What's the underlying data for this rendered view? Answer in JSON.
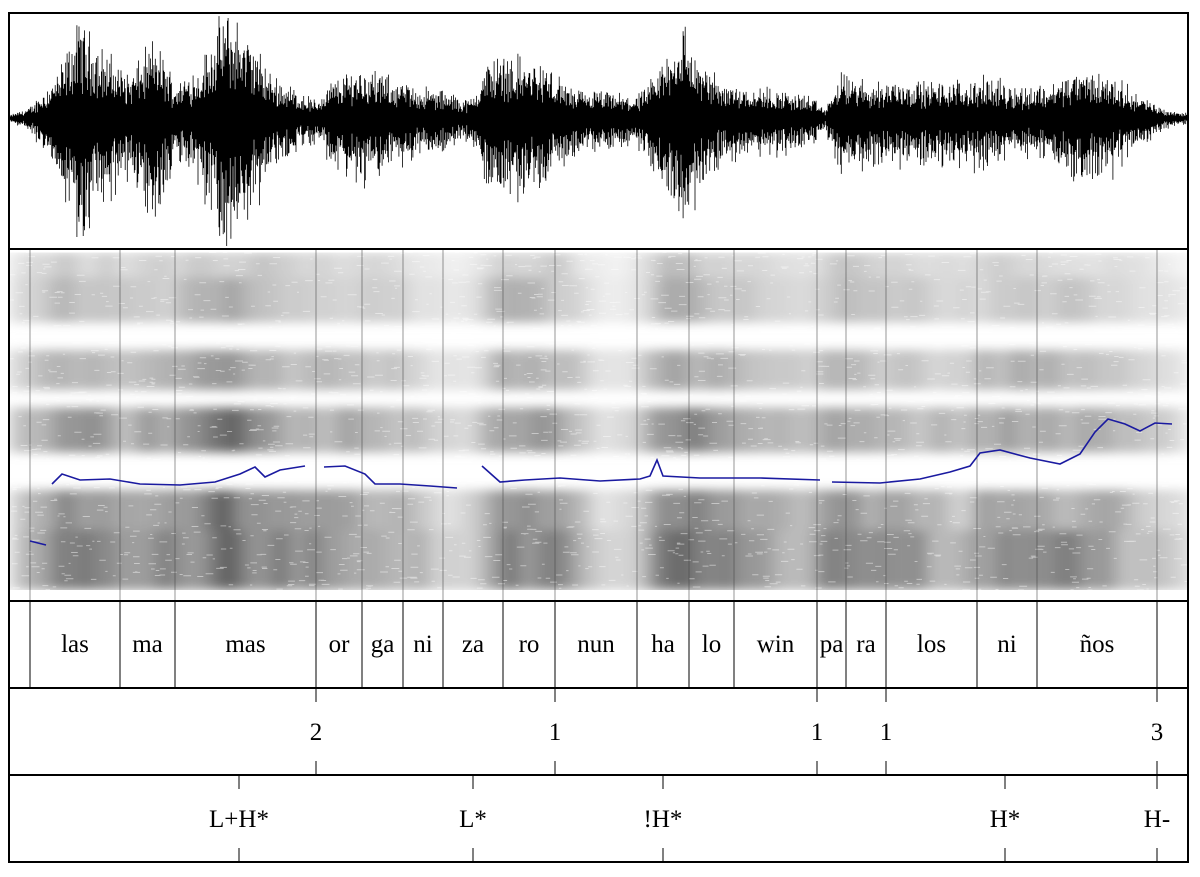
{
  "syllables": [
    "las",
    "ma",
    "mas",
    "or",
    "ga",
    "ni",
    "za",
    "ro",
    "nun",
    "ha",
    "lo",
    "win",
    "pa",
    "ra",
    "los",
    "ni",
    "ños"
  ],
  "break_indices": [
    "2",
    "1",
    "1",
    "1",
    "3"
  ],
  "tones": [
    "L+H*",
    "L*",
    "!H*",
    "H*",
    "H-"
  ],
  "colors": {
    "waveform": "#000000",
    "pitch": "#1a1aa0",
    "frame": "#000000"
  }
}
